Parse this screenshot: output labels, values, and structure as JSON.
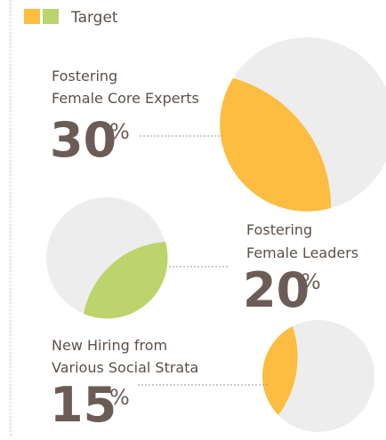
{
  "legend": {
    "label": "Target"
  },
  "items": [
    {
      "lines": [
        "Fostering",
        "Female Core Experts"
      ],
      "value": "30",
      "unit": "%"
    },
    {
      "lines": [
        "Fostering",
        "Female Leaders"
      ],
      "value": "20",
      "unit": "%"
    },
    {
      "lines": [
        "New Hiring from",
        "Various Social Strata"
      ],
      "value": "15",
      "unit": "%"
    }
  ]
}
